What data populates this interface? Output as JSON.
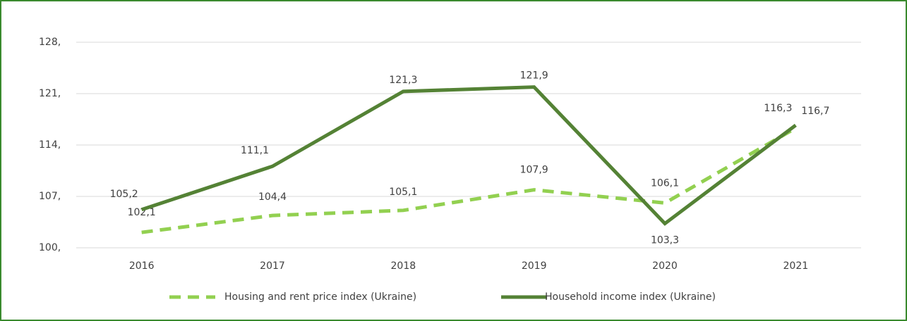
{
  "chart_data": {
    "type": "line",
    "categories": [
      "2016",
      "2017",
      "2018",
      "2019",
      "2020",
      "2021"
    ],
    "series": [
      {
        "name": "Housing and rent price index (Ukraine)",
        "color": "#92d050",
        "dashed": true,
        "values": [
          102.1,
          104.4,
          105.1,
          107.9,
          106.1,
          116.3
        ],
        "value_labels": [
          "102,1",
          "104,4",
          "105,1",
          "107,9",
          "106,1",
          "116,3"
        ]
      },
      {
        "name": "Household income index (Ukraine)",
        "color": "#548235",
        "dashed": false,
        "values": [
          105.2,
          111.1,
          121.3,
          121.9,
          103.3,
          116.7
        ],
        "value_labels": [
          "105,2",
          "111,1",
          "121,3",
          "121,9",
          "103,3",
          "116,7"
        ]
      }
    ],
    "ylim": [
      100,
      128
    ],
    "yticks": [
      {
        "value": 100,
        "label": "100,"
      },
      {
        "value": 107,
        "label": "107,"
      },
      {
        "value": 114,
        "label": "114,"
      },
      {
        "value": 121,
        "label": "121,"
      },
      {
        "value": 128,
        "label": "128,"
      }
    ],
    "grid": true,
    "legend": "bottom"
  }
}
